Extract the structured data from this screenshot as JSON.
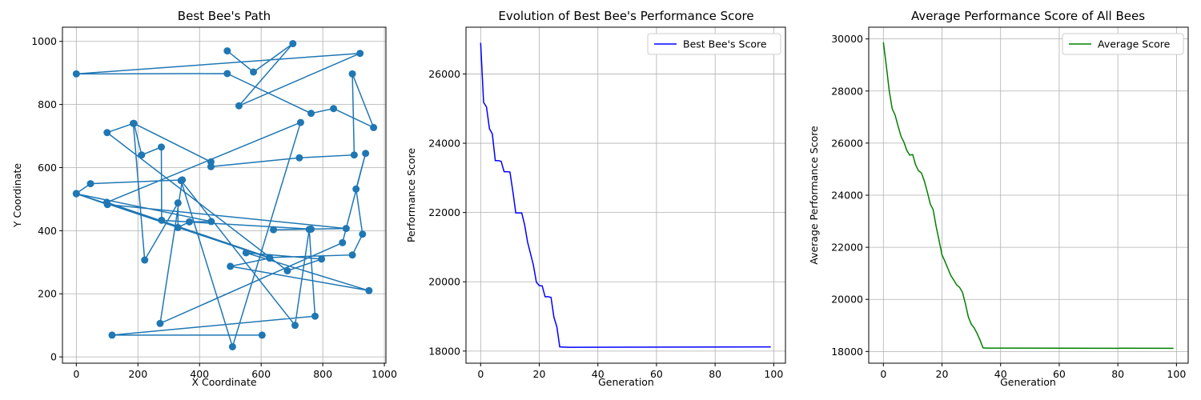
{
  "chart_data": [
    {
      "type": "scatter",
      "title": "Best Bee's Path",
      "xlabel": "X Coordinate",
      "ylabel": "Y Coordinate",
      "xlim": [
        -45,
        1005
      ],
      "ylim": [
        -20,
        1045
      ],
      "xticks": [
        0,
        200,
        400,
        600,
        800,
        1000
      ],
      "yticks": [
        0,
        200,
        400,
        600,
        800,
        1000
      ],
      "grid": true,
      "connected": true,
      "marker": "circle",
      "color": "#1f77b4",
      "points": [
        [
          490,
          970
        ],
        [
          575,
          903
        ],
        [
          703,
          993
        ],
        [
          528,
          796
        ],
        [
          921,
          962
        ],
        [
          0,
          897
        ],
        [
          490,
          898
        ],
        [
          762,
          772
        ],
        [
          835,
          787
        ],
        [
          965,
          727
        ],
        [
          896,
          897
        ],
        [
          902,
          640
        ],
        [
          724,
          631
        ],
        [
          437,
          603
        ],
        [
          437,
          618
        ],
        [
          187,
          740
        ],
        [
          212,
          640
        ],
        [
          276,
          665
        ],
        [
          277,
          433
        ],
        [
          762,
          405
        ],
        [
          640,
          403
        ],
        [
          876,
          407
        ],
        [
          101,
          483
        ],
        [
          0,
          517
        ],
        [
          438,
          429
        ],
        [
          367,
          428
        ],
        [
          330,
          410
        ],
        [
          330,
          488
        ],
        [
          222,
          307
        ],
        [
          185,
          740
        ],
        [
          100,
          711
        ],
        [
          685,
          273
        ],
        [
          796,
          310
        ],
        [
          551,
          330
        ],
        [
          950,
          210
        ],
        [
          500,
          287
        ],
        [
          628,
          313
        ],
        [
          0,
          518
        ],
        [
          46,
          549
        ],
        [
          344,
          561
        ],
        [
          272,
          106
        ],
        [
          864,
          362
        ],
        [
          939,
          645
        ],
        [
          908,
          532
        ],
        [
          929,
          389
        ],
        [
          896,
          323
        ],
        [
          627,
          315
        ],
        [
          99,
          490
        ],
        [
          728,
          743
        ],
        [
          507,
          32
        ],
        [
          340,
          559
        ],
        [
          710,
          100
        ],
        [
          756,
          404
        ],
        [
          775,
          129
        ],
        [
          116,
          69
        ],
        [
          603,
          69
        ]
      ]
    },
    {
      "type": "line",
      "title": "Evolution of Best Bee's Performance Score",
      "xlabel": "Generation",
      "ylabel": "Performance Score",
      "xlim": [
        -5,
        104
      ],
      "ylim": [
        17650,
        27350
      ],
      "xticks": [
        0,
        20,
        40,
        60,
        80,
        100
      ],
      "yticks": [
        18000,
        20000,
        22000,
        24000,
        26000
      ],
      "grid": true,
      "legend": "top-right",
      "series": [
        {
          "name": "Best Bee's Score",
          "color": "#0000ff",
          "points": [
            [
              0,
              26900
            ],
            [
              1,
              25180
            ],
            [
              2,
              25050
            ],
            [
              3,
              24420
            ],
            [
              4,
              24270
            ],
            [
              5,
              23500
            ],
            [
              6,
              23500
            ],
            [
              7,
              23480
            ],
            [
              8,
              23180
            ],
            [
              9,
              23180
            ],
            [
              10,
              23170
            ],
            [
              11,
              22600
            ],
            [
              12,
              21990
            ],
            [
              13,
              21990
            ],
            [
              14,
              21990
            ],
            [
              15,
              21650
            ],
            [
              16,
              21150
            ],
            [
              17,
              20820
            ],
            [
              18,
              20480
            ],
            [
              19,
              19990
            ],
            [
              20,
              19890
            ],
            [
              21,
              19880
            ],
            [
              22,
              19570
            ],
            [
              23,
              19570
            ],
            [
              24,
              19550
            ],
            [
              25,
              18980
            ],
            [
              26,
              18700
            ],
            [
              27,
              18120
            ],
            [
              30,
              18110
            ],
            [
              99,
              18120
            ]
          ]
        }
      ]
    },
    {
      "type": "line",
      "title": "Average Performance Score of All Bees",
      "xlabel": "Generation",
      "ylabel": "Average Performance Score",
      "xlim": [
        -5,
        104
      ],
      "ylim": [
        17550,
        30450
      ],
      "xticks": [
        0,
        20,
        40,
        60,
        80,
        100
      ],
      "yticks": [
        18000,
        20000,
        22000,
        24000,
        26000,
        28000,
        30000
      ],
      "grid": true,
      "legend": "top-right",
      "series": [
        {
          "name": "Average Score",
          "color": "#008000",
          "points": [
            [
              0,
              29870
            ],
            [
              1,
              28960
            ],
            [
              2,
              28010
            ],
            [
              3,
              27320
            ],
            [
              4,
              27080
            ],
            [
              5,
              26660
            ],
            [
              6,
              26260
            ],
            [
              7,
              26040
            ],
            [
              8,
              25720
            ],
            [
              9,
              25540
            ],
            [
              10,
              25560
            ],
            [
              11,
              25160
            ],
            [
              12,
              24940
            ],
            [
              13,
              24850
            ],
            [
              14,
              24530
            ],
            [
              15,
              24120
            ],
            [
              16,
              23660
            ],
            [
              17,
              23440
            ],
            [
              18,
              22800
            ],
            [
              19,
              22260
            ],
            [
              20,
              21710
            ],
            [
              21,
              21460
            ],
            [
              22,
              21190
            ],
            [
              23,
              20920
            ],
            [
              24,
              20740
            ],
            [
              25,
              20560
            ],
            [
              26,
              20460
            ],
            [
              27,
              20270
            ],
            [
              28,
              19830
            ],
            [
              29,
              19320
            ],
            [
              30,
              19050
            ],
            [
              31,
              18900
            ],
            [
              32,
              18690
            ],
            [
              33,
              18430
            ],
            [
              34,
              18140
            ],
            [
              35,
              18130
            ],
            [
              99,
              18120
            ]
          ]
        }
      ]
    }
  ]
}
